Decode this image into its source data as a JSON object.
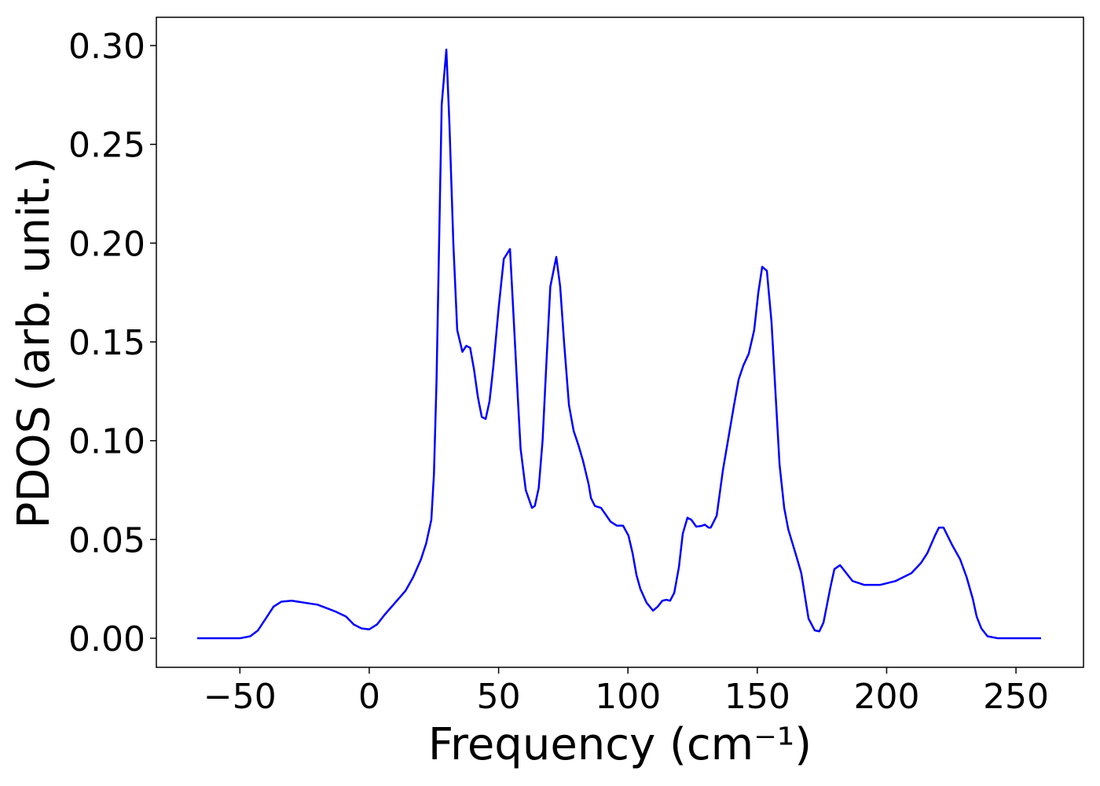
{
  "chart_data": {
    "type": "line",
    "xlabel": "Frequency (cm⁻¹)",
    "ylabel": "PDOS (arb. unit.)",
    "xlim": [
      -82.3,
      276.1
    ],
    "ylim": [
      -0.0147,
      0.3143
    ],
    "xticks": [
      {
        "value": -50,
        "label": "−50"
      },
      0,
      50,
      100,
      150,
      200,
      250
    ],
    "yticks": [
      {
        "value": 0,
        "label": "0.00"
      },
      {
        "value": 0.05,
        "label": "0.05"
      },
      {
        "value": 0.1,
        "label": "0.10"
      },
      {
        "value": 0.15,
        "label": "0.15"
      },
      {
        "value": 0.2,
        "label": "0.20"
      },
      {
        "value": 0.25,
        "label": "0.25"
      },
      {
        "value": 0.3,
        "label": "0.30"
      }
    ],
    "grid": false,
    "x": [
      -66.5,
      -50,
      -46,
      -43,
      -40,
      -37,
      -34,
      -30,
      -25,
      -20,
      -16,
      -13,
      -9,
      -6,
      -3,
      0,
      3,
      6,
      10,
      14,
      17,
      20,
      22,
      24,
      25,
      26,
      27,
      28,
      29.8,
      31,
      32.5,
      34,
      36,
      37.5,
      39,
      40.5,
      42,
      43.5,
      45,
      46.5,
      48,
      50,
      52,
      54.4,
      55.5,
      57.5,
      58.5,
      60.5,
      62.9,
      64,
      65.5,
      67,
      68.5,
      70,
      72.3,
      73.8,
      75.3,
      77.2,
      79,
      80.8,
      82.6,
      84.8,
      85.7,
      87.2,
      89.6,
      93.3,
      95.7,
      98.1,
      100.2,
      101.8,
      103.3,
      104.8,
      107.2,
      109.7,
      111.5,
      113.3,
      114.8,
      116.3,
      117.9,
      119.7,
      121.2,
      123,
      124.5,
      126.4,
      128.2,
      129.7,
      131.2,
      132,
      134.3,
      136.7,
      141,
      142.8,
      144.6,
      146.7,
      148.8,
      150.4,
      151.9,
      153.7,
      155.5,
      158.6,
      160.4,
      162,
      165,
      167,
      169.8,
      172.2,
      174,
      175.6,
      178.3,
      179.8,
      182,
      184.4,
      186.8,
      191.4,
      197.4,
      203.5,
      209.6,
      213.2,
      215.7,
      218.7,
      220.2,
      222,
      225.4,
      228.4,
      230.9,
      233.3,
      234.8,
      236.6,
      239,
      243,
      259.7
    ],
    "series": [
      {
        "name": "PDOS",
        "color": "#0000ff",
        "values": [
          0,
          0,
          0.001,
          0.004,
          0.01,
          0.016,
          0.0185,
          0.019,
          0.018,
          0.017,
          0.015,
          0.0135,
          0.011,
          0.007,
          0.005,
          0.0045,
          0.007,
          0.012,
          0.018,
          0.024,
          0.031,
          0.04,
          0.048,
          0.06,
          0.083,
          0.13,
          0.2,
          0.27,
          0.298,
          0.26,
          0.2,
          0.156,
          0.145,
          0.148,
          0.147,
          0.136,
          0.122,
          0.112,
          0.111,
          0.12,
          0.138,
          0.167,
          0.192,
          0.197,
          0.17,
          0.12,
          0.096,
          0.075,
          0.066,
          0.067,
          0.076,
          0.1,
          0.14,
          0.178,
          0.193,
          0.178,
          0.15,
          0.118,
          0.105,
          0.098,
          0.09,
          0.078,
          0.071,
          0.067,
          0.066,
          0.059,
          0.057,
          0.057,
          0.052,
          0.043,
          0.032,
          0.025,
          0.018,
          0.014,
          0.016,
          0.019,
          0.0195,
          0.019,
          0.023,
          0.036,
          0.053,
          0.061,
          0.06,
          0.0565,
          0.0568,
          0.0575,
          0.056,
          0.056,
          0.062,
          0.085,
          0.118,
          0.131,
          0.138,
          0.144,
          0.156,
          0.175,
          0.188,
          0.186,
          0.16,
          0.088,
          0.066,
          0.055,
          0.042,
          0.033,
          0.01,
          0.004,
          0.0035,
          0.008,
          0.026,
          0.035,
          0.037,
          0.033,
          0.029,
          0.027,
          0.027,
          0.029,
          0.033,
          0.038,
          0.043,
          0.052,
          0.056,
          0.056,
          0.047,
          0.04,
          0.031,
          0.02,
          0.011,
          0.005,
          0.001,
          0,
          0
        ]
      }
    ]
  }
}
